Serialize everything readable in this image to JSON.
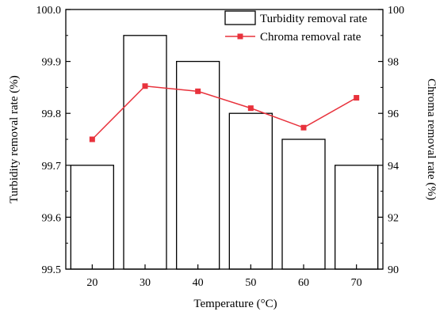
{
  "chart_data": {
    "type": "bar",
    "xlabel": "Temperature (°C)",
    "ylabel_left": "Turbidity removal rate (%)",
    "ylabel_right": "Chroma removal rate (%)",
    "categories": [
      "20",
      "30",
      "40",
      "50",
      "60",
      "70"
    ],
    "ylim_left": [
      99.5,
      100.0
    ],
    "ylim_right": [
      90,
      100
    ],
    "yticks_left": [
      "99.5",
      "99.6",
      "99.7",
      "99.8",
      "99.9",
      "100.0"
    ],
    "yticks_right": [
      "90",
      "92",
      "94",
      "96",
      "98",
      "100"
    ],
    "legend_position": "top-right",
    "grid": false,
    "series": [
      {
        "name": "Turbidity removal rate",
        "type": "bar",
        "axis": "left",
        "values": [
          99.7,
          99.95,
          99.9,
          99.8,
          99.75,
          99.7
        ],
        "color": "#000000",
        "fill": "#ffffff"
      },
      {
        "name": "Chroma removal rate",
        "type": "line",
        "axis": "right",
        "values": [
          95.0,
          97.05,
          96.85,
          96.2,
          95.45,
          96.6
        ],
        "color": "#e8323c",
        "marker": "square"
      }
    ]
  }
}
